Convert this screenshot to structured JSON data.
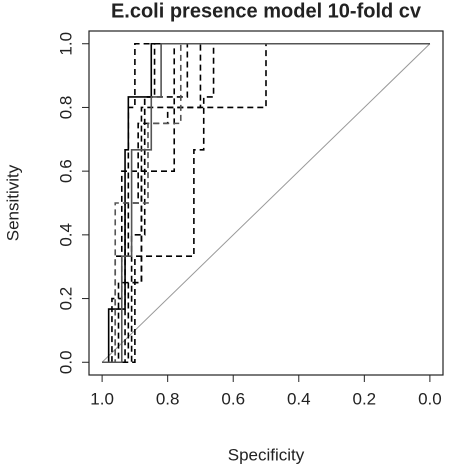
{
  "chart_data": {
    "type": "roc",
    "title": "E.coli presence model 10-fold cv",
    "x_label": "Specificity",
    "y_label": "Sensitivity",
    "xlim": [
      1.04,
      -0.04
    ],
    "ylim": [
      -0.04,
      1.04
    ],
    "xticks": [
      {
        "value": 1,
        "label": "1.0"
      },
      0.8,
      0.6,
      0.4,
      0.2,
      {
        "value": 0,
        "label": "0.0"
      }
    ],
    "yticks": [
      {
        "value": 0,
        "label": "0.0"
      },
      0.2,
      0.4,
      0.6,
      0.8,
      {
        "value": 1,
        "label": "1.0"
      }
    ],
    "diagonal": true,
    "diagonal_color": "#999999",
    "series": [
      {
        "color": "#000000",
        "dash": "solid",
        "x": [
          1,
          0.98,
          0.98,
          0.93,
          0.93,
          0.92,
          0.92,
          0.85,
          0.85,
          0
        ],
        "y": [
          0,
          0,
          0.167,
          0.167,
          0.667,
          0.667,
          0.833,
          0.833,
          1,
          1
        ]
      },
      {
        "color": "#000000",
        "dash": "dashed",
        "x": [
          1,
          0.9,
          0.9,
          0.72,
          0.72,
          0.69,
          0.69,
          0.66,
          0.66,
          0
        ],
        "y": [
          0,
          0,
          0.333,
          0.333,
          0.667,
          0.667,
          0.833,
          0.833,
          1,
          1
        ]
      },
      {
        "color": "#000000",
        "dash": "dashed",
        "x": [
          1,
          0.96,
          0.96,
          0.92,
          0.92,
          0.9,
          0.9,
          0
        ],
        "y": [
          0,
          0,
          0.333,
          0.333,
          0.8,
          0.8,
          1,
          1
        ]
      },
      {
        "color": "#000000",
        "dash": "dashed",
        "x": [
          1,
          0.95,
          0.95,
          0.88,
          0.88,
          0.5,
          0.5,
          0
        ],
        "y": [
          0,
          0,
          0.25,
          0.25,
          0.8,
          0.8,
          1,
          1
        ]
      },
      {
        "color": "#000000",
        "dash": "dashed",
        "x": [
          1,
          0.93,
          0.93,
          0.89,
          0.89,
          0.8,
          0.8,
          0.7,
          0.7,
          0
        ],
        "y": [
          0,
          0,
          0.5,
          0.5,
          0.75,
          0.75,
          0.8,
          0.8,
          1,
          1
        ]
      },
      {
        "color": "#000000",
        "dash": "dashed",
        "x": [
          1,
          0.92,
          0.92,
          0.88,
          0.88,
          0.78,
          0.78,
          0
        ],
        "y": [
          0,
          0,
          0.25,
          0.25,
          0.6,
          0.6,
          1,
          1
        ]
      },
      {
        "color": "#000000",
        "dash": "dashed",
        "x": [
          1,
          0.97,
          0.97,
          0.94,
          0.94,
          0.87,
          0.87,
          0.84,
          0.84,
          0
        ],
        "y": [
          0,
          0,
          0.2,
          0.2,
          0.6,
          0.6,
          0.833,
          0.833,
          1,
          1
        ]
      },
      {
        "color": "#000000",
        "dash": "dashed",
        "x": [
          1,
          0.91,
          0.91,
          0.87,
          0.87,
          0.74,
          0.74,
          0
        ],
        "y": [
          0,
          0,
          0.4,
          0.4,
          0.833,
          0.833,
          1,
          1
        ]
      },
      {
        "color": "#555555",
        "dash": "solid",
        "x": [
          1,
          0.94,
          0.94,
          0.91,
          0.91,
          0.85,
          0.85,
          0.82,
          0.82,
          0
        ],
        "y": [
          0,
          0,
          0.333,
          0.333,
          0.667,
          0.667,
          0.833,
          0.833,
          1,
          1
        ]
      },
      {
        "color": "#555555",
        "dash": "dashed",
        "x": [
          1,
          0.96,
          0.96,
          0.86,
          0.86,
          0.76,
          0.76,
          0
        ],
        "y": [
          0,
          0,
          0.5,
          0.5,
          0.75,
          0.75,
          1,
          1
        ]
      }
    ]
  }
}
